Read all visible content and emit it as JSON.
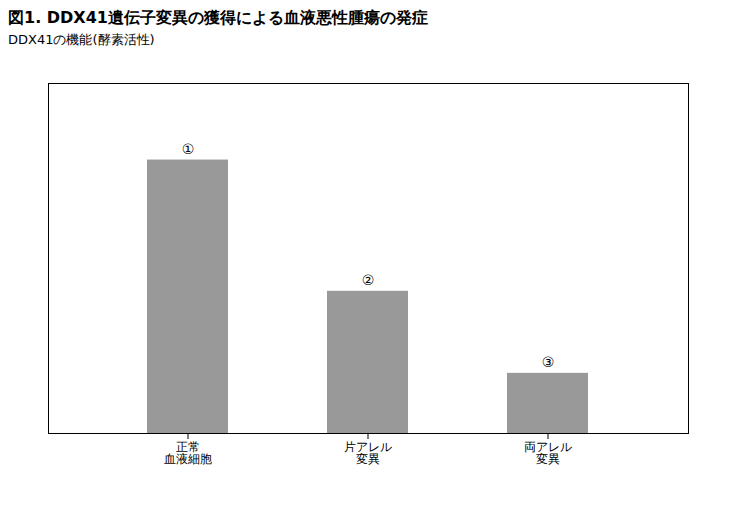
{
  "chart_data": {
    "type": "bar",
    "title": "図1. DDX41遺伝子変異の獲得による血液悪性腫瘍の発症",
    "subtitle": "DDX41の機能(酵素活性)",
    "categories": [
      "正常\n血液細胞",
      "片アレル\n変異",
      "両アレル\n変異"
    ],
    "values": [
      100,
      52,
      22
    ],
    "color": "#999999",
    "ylim": [
      0,
      128
    ],
    "tick_labels": "x",
    "annotations": [
      {
        "category": "正常\n血液細胞",
        "text": "①"
      },
      {
        "category": "片アレル\n変異",
        "text": "②"
      },
      {
        "category": "両アレル\n変異",
        "text": "③"
      }
    ]
  }
}
